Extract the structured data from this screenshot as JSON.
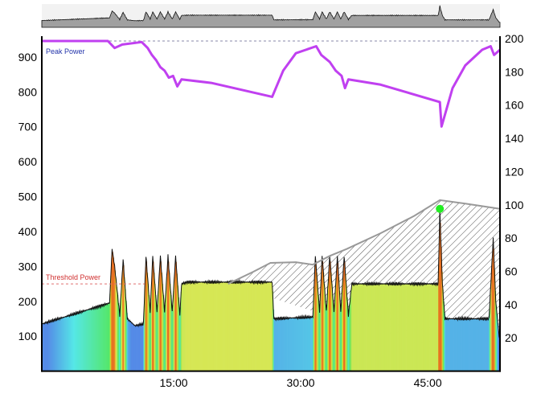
{
  "chart_data": {
    "type": "area",
    "title": "",
    "x_unit": "minutes",
    "xlim": [
      0,
      54.1
    ],
    "x_ticks": [
      {
        "value": 15,
        "label": "15:00"
      },
      {
        "value": 30,
        "label": "30:00"
      },
      {
        "value": 45,
        "label": "45:00"
      }
    ],
    "y_left": {
      "ylim": [
        0,
        955
      ],
      "ticks": [
        100,
        200,
        300,
        400,
        500,
        600,
        700,
        800,
        900
      ]
    },
    "y_right": {
      "ylim": [
        0,
        200
      ],
      "ticks": [
        20,
        40,
        60,
        80,
        100,
        120,
        140,
        160,
        180,
        200
      ]
    },
    "annotations": {
      "peak_power_label": "Peak Power",
      "peak_power_value": 955,
      "threshold_label": "Threshold Power",
      "threshold_value": 250
    },
    "colors": {
      "peak": "#c040f0",
      "threshold": "#e07070",
      "overview_fill": "#a0a0a0",
      "marker": "#22ee22"
    },
    "power_series": [
      [
        0,
        135
      ],
      [
        2,
        150
      ],
      [
        4,
        165
      ],
      [
        6,
        180
      ],
      [
        8,
        195
      ],
      [
        8.2,
        300
      ],
      [
        8.3,
        350
      ],
      [
        8.6,
        300
      ],
      [
        9.2,
        160
      ],
      [
        9.6,
        320
      ],
      [
        10.1,
        150
      ],
      [
        11,
        130
      ],
      [
        12,
        135
      ],
      [
        12.3,
        330
      ],
      [
        12.8,
        170
      ],
      [
        13.1,
        330
      ],
      [
        13.6,
        170
      ],
      [
        14,
        330
      ],
      [
        14.5,
        170
      ],
      [
        14.9,
        330
      ],
      [
        15.4,
        170
      ],
      [
        15.8,
        330
      ],
      [
        16.3,
        160
      ],
      [
        16.5,
        250
      ],
      [
        17.2,
        255
      ],
      [
        27.2,
        255
      ],
      [
        27.4,
        150
      ],
      [
        32,
        155
      ],
      [
        32.3,
        330
      ],
      [
        32.8,
        170
      ],
      [
        33.1,
        330
      ],
      [
        33.6,
        170
      ],
      [
        34,
        330
      ],
      [
        34.5,
        170
      ],
      [
        34.9,
        330
      ],
      [
        35.3,
        170
      ],
      [
        35.7,
        330
      ],
      [
        36.2,
        160
      ],
      [
        36.6,
        250
      ],
      [
        46.8,
        250
      ],
      [
        47,
        460
      ],
      [
        47.3,
        250
      ],
      [
        47.6,
        150
      ],
      [
        52.8,
        150
      ],
      [
        53.3,
        380
      ],
      [
        53.6,
        200
      ],
      [
        54,
        100
      ],
      [
        54.1,
        90
      ]
    ],
    "peak_power_series": [
      [
        0,
        955
      ],
      [
        7.8,
        955
      ],
      [
        8.6,
        935
      ],
      [
        9.5,
        945
      ],
      [
        11.8,
        952
      ],
      [
        12.5,
        935
      ],
      [
        13,
        915
      ],
      [
        13.5,
        900
      ],
      [
        14,
        880
      ],
      [
        14.5,
        870
      ],
      [
        15,
        850
      ],
      [
        15.5,
        855
      ],
      [
        16,
        825
      ],
      [
        16.5,
        845
      ],
      [
        20,
        835
      ],
      [
        27.2,
        795
      ],
      [
        28.5,
        870
      ],
      [
        30,
        920
      ],
      [
        32.4,
        940
      ],
      [
        33,
        915
      ],
      [
        34,
        895
      ],
      [
        34.7,
        870
      ],
      [
        35.4,
        855
      ],
      [
        35.8,
        820
      ],
      [
        36.2,
        845
      ],
      [
        40,
        830
      ],
      [
        47,
        780
      ],
      [
        47.2,
        710
      ],
      [
        48.5,
        820
      ],
      [
        50,
        885
      ],
      [
        52,
        930
      ],
      [
        53,
        940
      ],
      [
        53.4,
        915
      ],
      [
        54.1,
        930
      ]
    ],
    "wprime_series": [
      [
        22,
        250
      ],
      [
        25,
        285
      ],
      [
        27,
        310
      ],
      [
        30,
        312
      ],
      [
        32,
        305
      ],
      [
        34,
        330
      ],
      [
        36,
        350
      ],
      [
        40,
        395
      ],
      [
        44,
        445
      ],
      [
        47,
        490
      ],
      [
        50,
        480
      ],
      [
        54.1,
        465
      ]
    ],
    "marker": {
      "minute": 47,
      "value": 465
    }
  }
}
